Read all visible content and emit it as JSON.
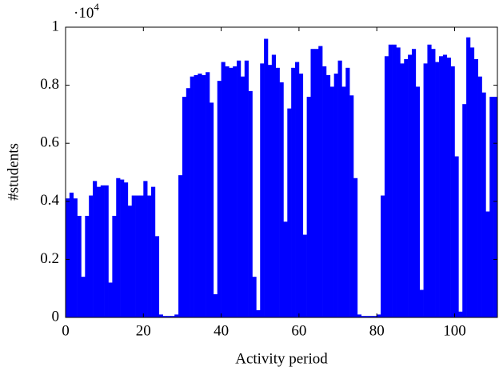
{
  "chart_data": {
    "type": "bar",
    "xlabel": "Activity period",
    "ylabel": "#students",
    "y_multiplier": {
      "base": "·10",
      "exponent": "4"
    },
    "color": "#0000ff",
    "x": [
      0,
      1,
      2,
      3,
      4,
      5,
      6,
      7,
      8,
      9,
      10,
      11,
      12,
      13,
      14,
      15,
      16,
      17,
      18,
      19,
      20,
      21,
      22,
      23,
      24,
      25,
      26,
      27,
      28,
      29,
      30,
      31,
      32,
      33,
      34,
      35,
      36,
      37,
      38,
      39,
      40,
      41,
      42,
      43,
      44,
      45,
      46,
      47,
      48,
      49,
      50,
      51,
      52,
      53,
      54,
      55,
      56,
      57,
      58,
      59,
      60,
      61,
      62,
      63,
      64,
      65,
      66,
      67,
      68,
      69,
      70,
      71,
      72,
      73,
      74,
      75,
      76,
      77,
      78,
      79,
      80,
      81,
      82,
      83,
      84,
      85,
      86,
      87,
      88,
      89,
      90,
      91,
      92,
      93,
      94,
      95,
      96,
      97,
      98,
      99,
      100,
      101,
      102,
      103,
      104,
      105,
      106,
      107,
      108,
      109,
      110
    ],
    "values": [
      0.41,
      0.43,
      0.41,
      0.35,
      0.14,
      0.35,
      0.42,
      0.47,
      0.45,
      0.455,
      0.455,
      0.12,
      0.35,
      0.48,
      0.475,
      0.465,
      0.385,
      0.42,
      0.42,
      0.42,
      0.47,
      0.42,
      0.45,
      0.28,
      0.01,
      0.005,
      0.005,
      0.005,
      0.01,
      0.49,
      0.76,
      0.79,
      0.83,
      0.835,
      0.84,
      0.835,
      0.845,
      0.74,
      0.08,
      0.815,
      0.88,
      0.865,
      0.86,
      0.865,
      0.885,
      0.83,
      0.885,
      0.78,
      0.14,
      0.025,
      0.875,
      0.96,
      0.87,
      0.905,
      0.86,
      0.81,
      0.33,
      0.72,
      0.86,
      0.88,
      0.84,
      0.285,
      0.76,
      0.925,
      0.925,
      0.935,
      0.865,
      0.835,
      0.795,
      0.84,
      0.885,
      0.795,
      0.86,
      0.765,
      0.48,
      0.01,
      0.005,
      0.005,
      0.005,
      0.005,
      0.01,
      0.42,
      0.9,
      0.94,
      0.94,
      0.93,
      0.875,
      0.89,
      0.905,
      0.925,
      0.795,
      0.095,
      0.875,
      0.94,
      0.925,
      0.88,
      0.9,
      0.905,
      0.895,
      0.865,
      0.555,
      0.02,
      0.735,
      0.965,
      0.93,
      0.89,
      0.83,
      0.775,
      0.365,
      0.76,
      0.76
    ],
    "xlim": [
      0,
      111
    ],
    "xticks": [
      0,
      20,
      40,
      60,
      80,
      100
    ],
    "ylim": [
      0,
      1
    ],
    "yticks": [
      0,
      0.2,
      0.4,
      0.6,
      0.8,
      1
    ]
  }
}
